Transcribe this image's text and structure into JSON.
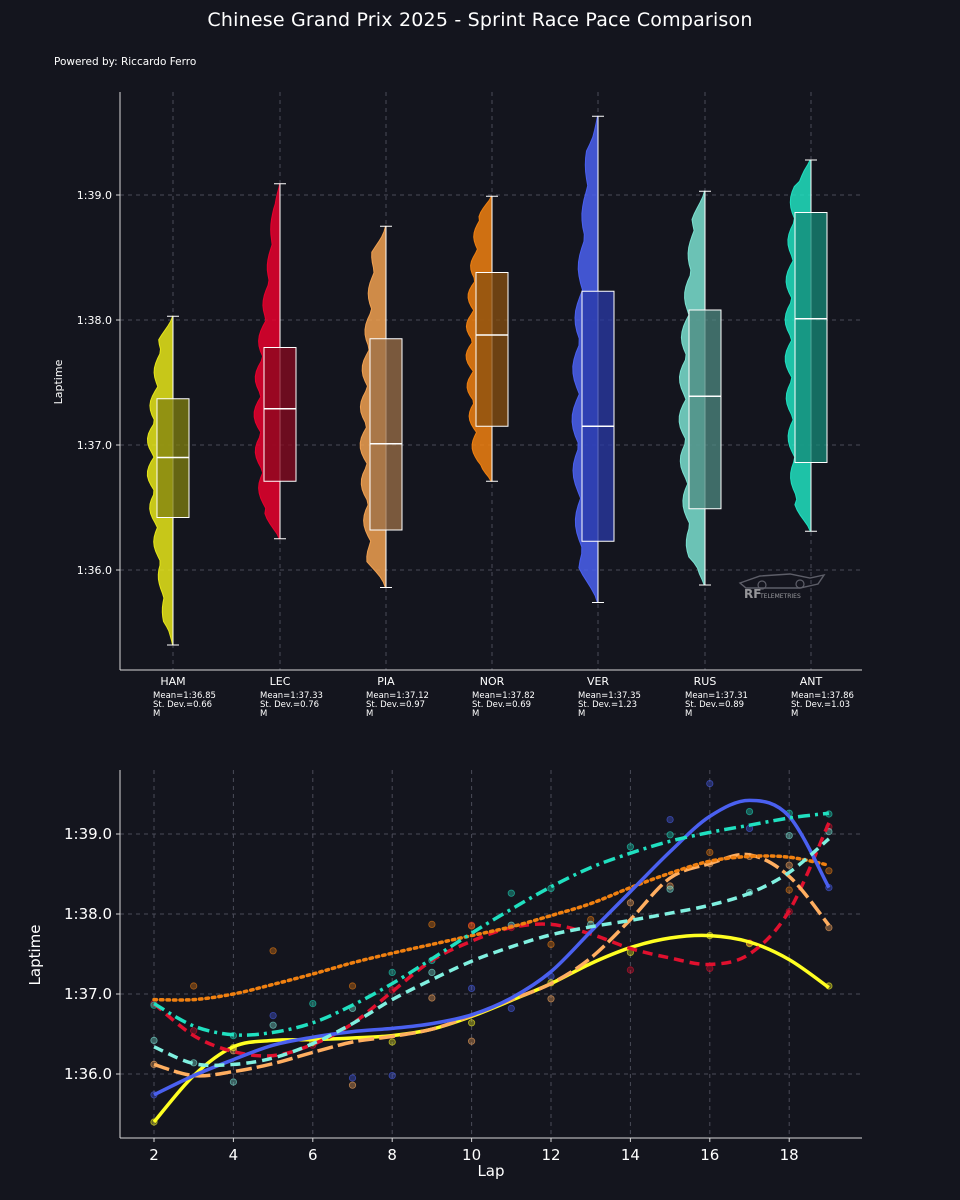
{
  "header": {
    "title": "Chinese Grand Prix 2025 - Sprint Race Pace Comparison",
    "credit": "Powered by: Riccardo Ferro"
  },
  "watermark": {
    "logo_text": "RF",
    "sub_text": "TELEMETRIES"
  },
  "chart_data": [
    {
      "type": "box-violin",
      "title": "Chinese Grand Prix 2025 - Sprint Race Pace Comparison",
      "xlabel": "",
      "ylabel": "Laptime",
      "ylim_seconds": [
        95.2,
        99.8
      ],
      "y_ticks": [
        {
          "value": 96,
          "label": "1:36.0"
        },
        {
          "value": 97,
          "label": "1:37.0"
        },
        {
          "value": 98,
          "label": "1:38.0"
        },
        {
          "value": 99,
          "label": "1:39.0"
        }
      ],
      "grid": true,
      "drivers": [
        {
          "code": "HAM",
          "color": "#e6e619",
          "box_color": "#808010",
          "min": 95.4,
          "q1": 96.42,
          "median": 96.9,
          "q3": 97.37,
          "max": 98.03,
          "mean_label": "Mean=1:36.85",
          "std_label": "St. Dev.=0.66",
          "extra_label": "M"
        },
        {
          "code": "LEC",
          "color": "#e8002d",
          "box_color": "#8a0a20",
          "min": 96.25,
          "q1": 96.71,
          "median": 97.29,
          "q3": 97.78,
          "max": 99.09,
          "mean_label": "Mean=1:37.33",
          "std_label": "St. Dev.=0.76",
          "extra_label": "M"
        },
        {
          "code": "PIA",
          "color": "#f0a050",
          "box_color": "#9c7048",
          "min": 95.86,
          "q1": 96.32,
          "median": 97.01,
          "q3": 97.85,
          "max": 98.75,
          "mean_label": "Mean=1:37.12",
          "std_label": "St. Dev.=0.97",
          "extra_label": "M"
        },
        {
          "code": "NOR",
          "color": "#f08010",
          "box_color": "#8a5010",
          "min": 96.71,
          "q1": 97.15,
          "median": 97.88,
          "q3": 98.38,
          "max": 98.99,
          "mean_label": "Mean=1:37.82",
          "std_label": "St. Dev.=0.69",
          "extra_label": "M"
        },
        {
          "code": "VER",
          "color": "#4a60f0",
          "box_color": "#2a3aa8",
          "min": 95.74,
          "q1": 96.23,
          "median": 97.15,
          "q3": 98.23,
          "max": 99.63,
          "mean_label": "Mean=1:37.35",
          "std_label": "St. Dev.=1.23",
          "extra_label": "M"
        },
        {
          "code": "RUS",
          "color": "#7ae0d0",
          "box_color": "#4e8a82",
          "min": 95.88,
          "q1": 96.49,
          "median": 97.39,
          "q3": 98.08,
          "max": 99.03,
          "mean_label": "Mean=1:37.31",
          "std_label": "St. Dev.=0.89",
          "extra_label": "M"
        },
        {
          "code": "ANT",
          "color": "#20e0c0",
          "box_color": "#158a78",
          "min": 96.31,
          "q1": 96.86,
          "median": 98.01,
          "q3": 98.86,
          "max": 99.28,
          "mean_label": "Mean=1:37.86",
          "std_label": "St. Dev.=1.03",
          "extra_label": "M"
        }
      ]
    },
    {
      "type": "line",
      "xlabel": "Lap",
      "ylabel": "Laptime",
      "xlim": [
        1.2,
        19.8
      ],
      "ylim_seconds": [
        95.2,
        99.8
      ],
      "x_ticks": [
        2,
        4,
        6,
        8,
        10,
        12,
        14,
        16,
        18
      ],
      "y_ticks": [
        {
          "value": 96,
          "label": "1:36.0"
        },
        {
          "value": 97,
          "label": "1:37.0"
        },
        {
          "value": 98,
          "label": "1:38.0"
        },
        {
          "value": 99,
          "label": "1:39.0"
        }
      ],
      "grid": true,
      "x": [
        2,
        3,
        4,
        5,
        6,
        7,
        8,
        9,
        10,
        11,
        12,
        13,
        14,
        15,
        16,
        17,
        18,
        19
      ],
      "series": [
        {
          "name": "HAM",
          "color": "#ffff22",
          "dash": "solid",
          "values": [
            95.4,
            95.98,
            96.34,
            96.42,
            96.43,
            96.45,
            96.48,
            96.56,
            96.72,
            96.92,
            97.13,
            97.38,
            97.58,
            97.7,
            97.73,
            97.65,
            97.43,
            97.08
          ]
        },
        {
          "name": "LEC",
          "color": "#e0102e",
          "dash": "dashed",
          "values": [
            96.88,
            96.48,
            96.28,
            96.23,
            96.37,
            96.63,
            97.03,
            97.42,
            97.66,
            97.83,
            97.87,
            97.75,
            97.57,
            97.45,
            97.37,
            97.5,
            98.04,
            99.14
          ]
        },
        {
          "name": "PIA",
          "color": "#ffae60",
          "dash": "longdash",
          "values": [
            96.12,
            95.98,
            96.03,
            96.13,
            96.27,
            96.4,
            96.47,
            96.56,
            96.73,
            96.93,
            97.13,
            97.45,
            97.93,
            98.45,
            98.63,
            98.74,
            98.47,
            97.86
          ]
        },
        {
          "name": "NOR",
          "color": "#f08010",
          "dash": "dotted",
          "values": [
            96.93,
            96.93,
            97.0,
            97.12,
            97.25,
            97.39,
            97.51,
            97.62,
            97.73,
            97.84,
            97.98,
            98.13,
            98.33,
            98.51,
            98.66,
            98.72,
            98.71,
            98.61
          ]
        },
        {
          "name": "VER",
          "color": "#4a60f0",
          "dash": "solid",
          "values": [
            95.74,
            95.98,
            96.18,
            96.36,
            96.46,
            96.53,
            96.57,
            96.63,
            96.74,
            96.95,
            97.28,
            97.78,
            98.28,
            98.78,
            99.22,
            99.42,
            99.22,
            98.33
          ]
        },
        {
          "name": "RUS",
          "color": "#80f0e0",
          "dash": "dashed",
          "values": [
            96.34,
            96.13,
            96.12,
            96.2,
            96.38,
            96.63,
            96.93,
            97.18,
            97.41,
            97.59,
            97.74,
            97.84,
            97.92,
            98.01,
            98.11,
            98.26,
            98.52,
            98.94
          ]
        },
        {
          "name": "ANT",
          "color": "#20e0c0",
          "dash": "dashdot",
          "values": [
            96.88,
            96.6,
            96.49,
            96.52,
            96.64,
            96.86,
            97.13,
            97.44,
            97.76,
            98.06,
            98.34,
            98.58,
            98.76,
            98.91,
            99.02,
            99.11,
            99.2,
            99.26
          ]
        }
      ],
      "scatter_points": [
        {
          "color": "#4a60f0",
          "points": [
            [
              2,
              95.74
            ],
            [
              5,
              96.73
            ],
            [
              7,
              95.95
            ],
            [
              8,
              95.98
            ],
            [
              10,
              97.07
            ],
            [
              11,
              96.82
            ],
            [
              12,
              97.22
            ],
            [
              15,
              99.18
            ],
            [
              16,
              99.63
            ],
            [
              17,
              99.07
            ],
            [
              19,
              98.33
            ]
          ]
        },
        {
          "color": "#e0102e",
          "points": [
            [
              2,
              96.88
            ],
            [
              3,
              96.54
            ],
            [
              6,
              96.36
            ],
            [
              8,
              97.05
            ],
            [
              10,
              97.86
            ],
            [
              11,
              97.83
            ],
            [
              13,
              97.82
            ],
            [
              14,
              97.3
            ],
            [
              16,
              97.32
            ],
            [
              17,
              97.64
            ],
            [
              18,
              98.03
            ],
            [
              19,
              99.09
            ]
          ]
        },
        {
          "color": "#ffae60",
          "points": [
            [
              2,
              96.12
            ],
            [
              4,
              96.29
            ],
            [
              7,
              95.86
            ],
            [
              9,
              96.95
            ],
            [
              10,
              96.41
            ],
            [
              12,
              96.94
            ],
            [
              14,
              98.14
            ],
            [
              15,
              98.35
            ],
            [
              16,
              98.63
            ],
            [
              17,
              98.72
            ],
            [
              18,
              98.61
            ],
            [
              19,
              97.83
            ]
          ]
        },
        {
          "color": "#f08010",
          "points": [
            [
              3,
              97.1
            ],
            [
              5,
              97.54
            ],
            [
              7,
              97.1
            ],
            [
              9,
              97.87
            ],
            [
              10,
              97.85
            ],
            [
              12,
              97.62
            ],
            [
              13,
              97.93
            ],
            [
              16,
              98.77
            ],
            [
              18,
              98.3
            ],
            [
              19,
              98.54
            ]
          ]
        },
        {
          "color": "#ffff22",
          "points": [
            [
              2,
              95.4
            ],
            [
              4,
              96.33
            ],
            [
              6,
              96.39
            ],
            [
              8,
              96.4
            ],
            [
              10,
              96.64
            ],
            [
              12,
              97.14
            ],
            [
              14,
              97.52
            ],
            [
              16,
              97.73
            ],
            [
              17,
              97.63
            ],
            [
              19,
              97.1
            ]
          ]
        },
        {
          "color": "#80f0e0",
          "points": [
            [
              2,
              96.42
            ],
            [
              3,
              96.14
            ],
            [
              4,
              95.9
            ],
            [
              5,
              96.61
            ],
            [
              7,
              96.82
            ],
            [
              9,
              97.27
            ],
            [
              11,
              97.86
            ],
            [
              13,
              97.87
            ],
            [
              15,
              98.31
            ],
            [
              17,
              98.27
            ],
            [
              18,
              98.98
            ],
            [
              19,
              99.03
            ]
          ]
        },
        {
          "color": "#20e0c0",
          "points": [
            [
              2,
              96.86
            ],
            [
              4,
              96.48
            ],
            [
              6,
              96.88
            ],
            [
              8,
              97.27
            ],
            [
              9,
              97.42
            ],
            [
              11,
              98.26
            ],
            [
              12,
              98.32
            ],
            [
              14,
              98.84
            ],
            [
              15,
              98.99
            ],
            [
              17,
              99.28
            ],
            [
              18,
              99.26
            ],
            [
              19,
              99.25
            ]
          ]
        }
      ]
    }
  ]
}
